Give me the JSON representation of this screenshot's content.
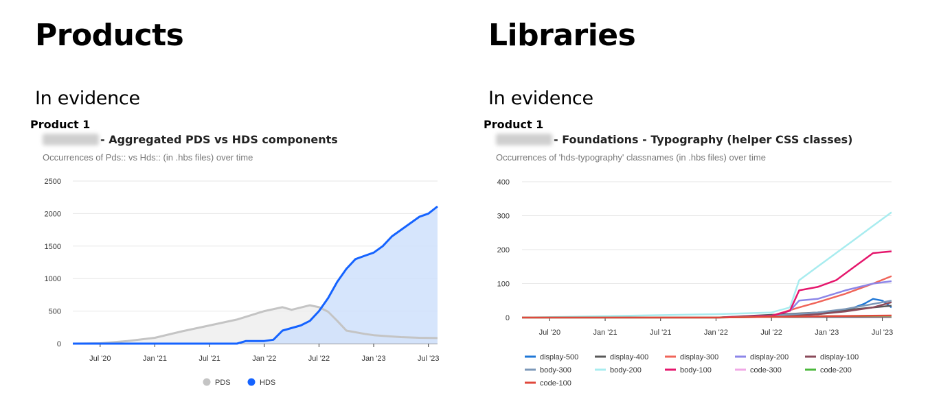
{
  "left": {
    "heading": "Products",
    "subheading": "In evidence",
    "product_label": "Product 1",
    "title": "- Aggregated PDS vs HDS components",
    "subtitle": "Occurrences of Pds:: vs Hds:: (in .hbs files) over time"
  },
  "right": {
    "heading": "Libraries",
    "subheading": "In evidence",
    "product_label": "Product 1",
    "title": "- Foundations - Typography (helper CSS classes)",
    "subtitle": "Occurrences of 'hds-typography' classnames (in .hbs files) over time"
  },
  "chart_data": [
    {
      "type": "area",
      "title": "- Aggregated PDS vs HDS components",
      "subtitle": "Occurrences of Pds:: vs Hds:: (in .hbs files) over time",
      "x_ticks": [
        "Jul '20",
        "Jan '21",
        "Jul '21",
        "Jan '22",
        "Jul '22",
        "Jan '23",
        "Jul '23"
      ],
      "y_ticks": [
        0,
        500,
        1000,
        1500,
        2000,
        2500
      ],
      "ylim": [
        0,
        2500
      ],
      "xlim": [
        "2020-04",
        "2023-08"
      ],
      "grid": true,
      "legend_position": "bottom",
      "series": [
        {
          "name": "PDS",
          "color": "#c4c4c4",
          "fill": "#efefef",
          "x": [
            "2020-04",
            "2020-07",
            "2020-10",
            "2021-01",
            "2021-04",
            "2021-07",
            "2021-10",
            "2022-01",
            "2022-03",
            "2022-04",
            "2022-06",
            "2022-07",
            "2022-08",
            "2022-09",
            "2022-10",
            "2022-12",
            "2023-01",
            "2023-03",
            "2023-04",
            "2023-06",
            "2023-08"
          ],
          "values": [
            0,
            5,
            40,
            90,
            190,
            280,
            370,
            500,
            560,
            520,
            590,
            560,
            490,
            350,
            200,
            150,
            130,
            110,
            100,
            90,
            85
          ]
        },
        {
          "name": "HDS",
          "color": "#1563ff",
          "fill": "#cfe0fc",
          "x": [
            "2020-04",
            "2021-10",
            "2021-11",
            "2022-01",
            "2022-02",
            "2022-03",
            "2022-05",
            "2022-06",
            "2022-07",
            "2022-08",
            "2022-09",
            "2022-10",
            "2022-11",
            "2022-12",
            "2023-01",
            "2023-02",
            "2023-03",
            "2023-04",
            "2023-05",
            "2023-06",
            "2023-07",
            "2023-08"
          ],
          "values": [
            0,
            0,
            40,
            40,
            60,
            200,
            280,
            350,
            500,
            700,
            950,
            1150,
            1300,
            1350,
            1400,
            1500,
            1650,
            1750,
            1850,
            1950,
            2000,
            2110
          ]
        }
      ]
    },
    {
      "type": "line",
      "title": "- Foundations - Typography (helper CSS classes)",
      "subtitle": "Occurrences of 'hds-typography' classnames (in .hbs files) over time",
      "x_ticks": [
        "Jul '20",
        "Jan '21",
        "Jul '21",
        "Jan '22",
        "Jul '22",
        "Jan '23",
        "Jul '23"
      ],
      "y_ticks": [
        0,
        100,
        200,
        300,
        400
      ],
      "ylim": [
        0,
        400
      ],
      "xlim": [
        "2020-04",
        "2023-08"
      ],
      "grid": true,
      "legend_position": "bottom",
      "series": [
        {
          "name": "display-500",
          "color": "#1f77d6",
          "x": [
            "2020-04",
            "2022-01",
            "2022-07",
            "2022-12",
            "2023-03",
            "2023-05",
            "2023-06",
            "2023-07",
            "2023-08"
          ],
          "values": [
            0,
            0,
            3,
            10,
            20,
            40,
            55,
            50,
            30
          ]
        },
        {
          "name": "display-400",
          "color": "#595959",
          "x": [
            "2020-04",
            "2022-01",
            "2022-07",
            "2022-12",
            "2023-03",
            "2023-06",
            "2023-08"
          ],
          "values": [
            0,
            0,
            8,
            15,
            22,
            30,
            35
          ]
        },
        {
          "name": "display-300",
          "color": "#f0655a",
          "x": [
            "2020-04",
            "2022-01",
            "2022-07",
            "2022-10",
            "2022-12",
            "2023-03",
            "2023-06",
            "2023-08"
          ],
          "values": [
            0,
            0,
            5,
            30,
            45,
            70,
            100,
            122
          ]
        },
        {
          "name": "display-200",
          "color": "#8c86e8",
          "x": [
            "2020-04",
            "2022-01",
            "2022-07",
            "2022-09",
            "2022-10",
            "2022-12",
            "2023-03",
            "2023-06",
            "2023-08"
          ],
          "values": [
            0,
            0,
            5,
            20,
            50,
            55,
            80,
            100,
            107
          ]
        },
        {
          "name": "display-100",
          "color": "#8a4a5a",
          "x": [
            "2020-04",
            "2022-01",
            "2022-07",
            "2022-12",
            "2023-03",
            "2023-06",
            "2023-08"
          ],
          "values": [
            0,
            0,
            5,
            10,
            18,
            30,
            45
          ]
        },
        {
          "name": "body-300",
          "color": "#7c98b8",
          "x": [
            "2020-04",
            "2022-01",
            "2022-07",
            "2022-12",
            "2023-03",
            "2023-06",
            "2023-08"
          ],
          "values": [
            0,
            0,
            5,
            15,
            25,
            40,
            50
          ]
        },
        {
          "name": "body-200",
          "color": "#a8ecef",
          "x": [
            "2020-04",
            "2022-01",
            "2022-07",
            "2022-09",
            "2022-10",
            "2022-12",
            "2023-02",
            "2023-04",
            "2023-06",
            "2023-08"
          ],
          "values": [
            0,
            10,
            15,
            30,
            110,
            150,
            190,
            230,
            270,
            310
          ]
        },
        {
          "name": "body-100",
          "color": "#e5166c",
          "x": [
            "2020-04",
            "2022-01",
            "2022-07",
            "2022-09",
            "2022-10",
            "2022-12",
            "2023-02",
            "2023-04",
            "2023-06",
            "2023-08"
          ],
          "values": [
            0,
            0,
            5,
            20,
            80,
            90,
            110,
            150,
            190,
            195
          ]
        },
        {
          "name": "code-300",
          "color": "#f0a8e6",
          "x": [
            "2020-04",
            "2022-01",
            "2022-07",
            "2023-01",
            "2023-08"
          ],
          "values": [
            0,
            0,
            2,
            3,
            4
          ]
        },
        {
          "name": "code-200",
          "color": "#4cb83c",
          "x": [
            "2020-04",
            "2022-01",
            "2022-07",
            "2023-01",
            "2023-08"
          ],
          "values": [
            0,
            0,
            2,
            4,
            5
          ]
        },
        {
          "name": "code-100",
          "color": "#e0483c",
          "x": [
            "2020-04",
            "2022-01",
            "2022-07",
            "2023-01",
            "2023-08"
          ],
          "values": [
            0,
            0,
            2,
            4,
            6
          ]
        }
      ]
    }
  ]
}
